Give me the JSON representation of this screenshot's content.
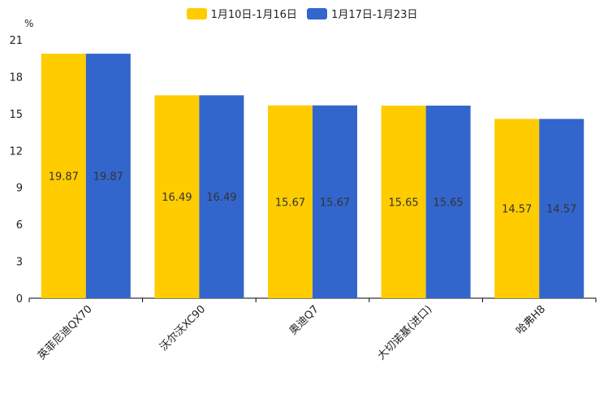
{
  "chart_data": {
    "type": "bar",
    "title": "",
    "unit": "%",
    "xlabel": "",
    "ylabel": "%",
    "ylim": [
      0,
      21
    ],
    "yticks": [
      0,
      3,
      6,
      9,
      12,
      15,
      18,
      21
    ],
    "categories": [
      "英菲尼迪QX70",
      "沃尔沃XC90",
      "奥迪Q7",
      "大切诺基(进口)",
      "哈弗H8"
    ],
    "series": [
      {
        "name": "1月10日-1月16日",
        "color": "#FFCC00",
        "values": [
          19.87,
          16.49,
          15.67,
          15.65,
          14.57
        ]
      },
      {
        "name": "1月17日-1月23日",
        "color": "#3366CC",
        "values": [
          19.87,
          16.49,
          15.67,
          15.65,
          14.57
        ]
      }
    ],
    "legend_position": "top-center",
    "grid": false
  }
}
